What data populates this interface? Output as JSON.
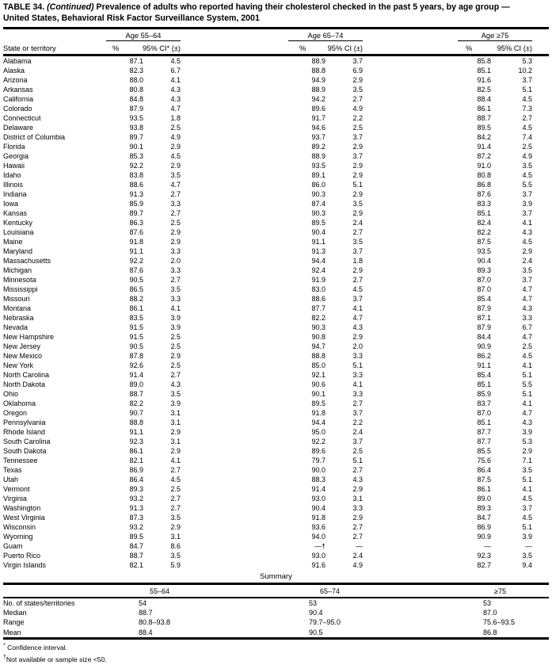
{
  "title": {
    "prefix": "TABLE 34.",
    "continued": "(Continued)",
    "line1_rest": "Prevalence of adults who reported having their cholesterol checked in the past 5 years, by age group —",
    "line2": "United States, Behavioral Risk Factor Surveillance System, 2001"
  },
  "table": {
    "row_header": "State or territory",
    "groups": [
      {
        "label": "Age 55–64",
        "pct_label": "%",
        "ci_label": "95% CI* (±)"
      },
      {
        "label": "Age 65–74",
        "pct_label": "%",
        "ci_label": "95% CI (±)"
      },
      {
        "label": "Age ≥75",
        "pct_label": "%",
        "ci_label": "95% CI (±)"
      }
    ],
    "rows": [
      {
        "name": "Alabama",
        "values": [
          "87.1",
          "4.5",
          "88.9",
          "3.7",
          "85.8",
          "5.3"
        ]
      },
      {
        "name": "Alaska",
        "values": [
          "82.3",
          "6.7",
          "88.8",
          "6.9",
          "85.1",
          "10.2"
        ]
      },
      {
        "name": "Arizona",
        "values": [
          "88.0",
          "4.1",
          "94.9",
          "2.9",
          "91.6",
          "3.7"
        ]
      },
      {
        "name": "Arkansas",
        "values": [
          "80.8",
          "4.3",
          "88.9",
          "3.5",
          "82.5",
          "5.1"
        ]
      },
      {
        "name": "California",
        "values": [
          "84.8",
          "4.3",
          "94.2",
          "2.7",
          "88.4",
          "4.5"
        ]
      },
      {
        "name": "Colorado",
        "values": [
          "87.9",
          "4.7",
          "89.6",
          "4.9",
          "86.1",
          "7.3"
        ]
      },
      {
        "name": "Connecticut",
        "values": [
          "93.5",
          "1.8",
          "91.7",
          "2.2",
          "88.7",
          "2.7"
        ]
      },
      {
        "name": "Delaware",
        "values": [
          "93.8",
          "2.5",
          "94.6",
          "2.5",
          "89.5",
          "4.5"
        ]
      },
      {
        "name": "District of Columbia",
        "values": [
          "89.7",
          "4.9",
          "93.7",
          "3.7",
          "84.2",
          "7.4"
        ]
      },
      {
        "name": "Florida",
        "values": [
          "90.1",
          "2.9",
          "89.2",
          "2.9",
          "91.4",
          "2.5"
        ]
      },
      {
        "name": "Georgia",
        "values": [
          "85.3",
          "4.5",
          "88.9",
          "3.7",
          "87.2",
          "4.9"
        ]
      },
      {
        "name": "Hawaii",
        "values": [
          "92.2",
          "2.9",
          "93.5",
          "2.9",
          "91.0",
          "3.5"
        ]
      },
      {
        "name": "Idaho",
        "values": [
          "83.8",
          "3.5",
          "89.1",
          "2.9",
          "80.8",
          "4.5"
        ]
      },
      {
        "name": "Illinois",
        "values": [
          "88.6",
          "4.7",
          "86.0",
          "5.1",
          "86.8",
          "5.5"
        ]
      },
      {
        "name": "Indiana",
        "values": [
          "91.3",
          "2.7",
          "90.3",
          "2.9",
          "87.6",
          "3.7"
        ]
      },
      {
        "name": "Iowa",
        "values": [
          "85.9",
          "3.3",
          "87.4",
          "3.5",
          "83.3",
          "3.9"
        ]
      },
      {
        "name": "Kansas",
        "values": [
          "89.7",
          "2.7",
          "90.3",
          "2.9",
          "85.1",
          "3.7"
        ]
      },
      {
        "name": "Kentucky",
        "values": [
          "86.3",
          "2.5",
          "89.5",
          "2.4",
          "82.4",
          "4.1"
        ]
      },
      {
        "name": "Louisiana",
        "values": [
          "87.6",
          "2.9",
          "90.4",
          "2.7",
          "82.2",
          "4.3"
        ]
      },
      {
        "name": "Maine",
        "values": [
          "91.8",
          "2.9",
          "91.1",
          "3.5",
          "87.5",
          "4.5"
        ]
      },
      {
        "name": "Maryland",
        "values": [
          "91.1",
          "3.3",
          "91.3",
          "3.7",
          "93.5",
          "2.9"
        ]
      },
      {
        "name": "Massachusetts",
        "values": [
          "92.2",
          "2.0",
          "94.4",
          "1.8",
          "90.4",
          "2.4"
        ]
      },
      {
        "name": "Michigan",
        "values": [
          "87.6",
          "3.3",
          "92.4",
          "2.9",
          "89.3",
          "3.5"
        ]
      },
      {
        "name": "Minnesota",
        "values": [
          "90.5",
          "2.7",
          "91.9",
          "2.7",
          "87.0",
          "3.7"
        ]
      },
      {
        "name": "Mississippi",
        "values": [
          "86.5",
          "3.5",
          "83.0",
          "4.5",
          "87.0",
          "4.7"
        ]
      },
      {
        "name": "Missouri",
        "values": [
          "88.2",
          "3.3",
          "88.6",
          "3.7",
          "85.4",
          "4.7"
        ]
      },
      {
        "name": "Montana",
        "values": [
          "86.1",
          "4.1",
          "87.7",
          "4.1",
          "87.9",
          "4.3"
        ]
      },
      {
        "name": "Nebraska",
        "values": [
          "83.5",
          "3.9",
          "82.2",
          "4.7",
          "87.1",
          "3.3"
        ]
      },
      {
        "name": "Nevada",
        "values": [
          "91.5",
          "3.9",
          "90.3",
          "4.3",
          "87.9",
          "6.7"
        ]
      },
      {
        "name": "New Hampshire",
        "values": [
          "91.5",
          "2.5",
          "90.8",
          "2.9",
          "84.4",
          "4.7"
        ]
      },
      {
        "name": "New Jersey",
        "values": [
          "90.5",
          "2.5",
          "94.7",
          "2.0",
          "90.9",
          "2.5"
        ]
      },
      {
        "name": "New Mexico",
        "values": [
          "87.8",
          "2.9",
          "88.8",
          "3.3",
          "86.2",
          "4.5"
        ]
      },
      {
        "name": "New York",
        "values": [
          "92.6",
          "2.5",
          "85.0",
          "5.1",
          "91.1",
          "4.1"
        ]
      },
      {
        "name": "North Carolina",
        "values": [
          "91.4",
          "2.7",
          "92.1",
          "3.3",
          "85.4",
          "5.1"
        ]
      },
      {
        "name": "North Dakota",
        "values": [
          "89.0",
          "4.3",
          "90.6",
          "4.1",
          "85.1",
          "5.5"
        ]
      },
      {
        "name": "Ohio",
        "values": [
          "88.7",
          "3.5",
          "90.1",
          "3.3",
          "85.9",
          "5.1"
        ]
      },
      {
        "name": "Oklahoma",
        "values": [
          "82.2",
          "3.9",
          "89.5",
          "2.7",
          "83.7",
          "4.1"
        ]
      },
      {
        "name": "Oregon",
        "values": [
          "90.7",
          "3.1",
          "91.8",
          "3.7",
          "87.0",
          "4.7"
        ]
      },
      {
        "name": "Pennsylvania",
        "values": [
          "88.8",
          "3.1",
          "94.4",
          "2.2",
          "85.1",
          "4.3"
        ]
      },
      {
        "name": "Rhode Island",
        "values": [
          "91.1",
          "2.9",
          "95.0",
          "2.4",
          "87.7",
          "3.9"
        ]
      },
      {
        "name": "South Carolina",
        "values": [
          "92.3",
          "3.1",
          "92.2",
          "3.7",
          "87.7",
          "5.3"
        ]
      },
      {
        "name": "South Dakota",
        "values": [
          "86.1",
          "2.9",
          "89.6",
          "2.5",
          "85.5",
          "2.9"
        ]
      },
      {
        "name": "Tennessee",
        "values": [
          "82.1",
          "4.1",
          "79.7",
          "5.1",
          "75.6",
          "7.1"
        ]
      },
      {
        "name": "Texas",
        "values": [
          "86.9",
          "2.7",
          "90.0",
          "2.7",
          "86.4",
          "3.5"
        ]
      },
      {
        "name": "Utah",
        "values": [
          "86.4",
          "4.5",
          "88.3",
          "4.3",
          "87.5",
          "5.1"
        ]
      },
      {
        "name": "Vermont",
        "values": [
          "89.3",
          "2.5",
          "91.4",
          "2.9",
          "86.1",
          "4.1"
        ]
      },
      {
        "name": "Virginia",
        "values": [
          "93.2",
          "2.7",
          "93.0",
          "3.1",
          "89.0",
          "4.5"
        ]
      },
      {
        "name": "Washington",
        "values": [
          "91.3",
          "2.7",
          "90.4",
          "3.3",
          "89.3",
          "3.7"
        ]
      },
      {
        "name": "West Virginia",
        "values": [
          "87.3",
          "3.5",
          "91.8",
          "2.9",
          "84.7",
          "4.5"
        ]
      },
      {
        "name": "Wisconsin",
        "values": [
          "93.2",
          "2.9",
          "93.6",
          "2.7",
          "86.9",
          "5.1"
        ]
      },
      {
        "name": "Wyoming",
        "values": [
          "89.5",
          "3.1",
          "94.0",
          "2.7",
          "90.9",
          "3.9"
        ]
      },
      {
        "name": "Guam",
        "values": [
          "84.7",
          "8.6",
          "—†",
          "—",
          "—",
          "—"
        ]
      },
      {
        "name": "Puerto Rico",
        "values": [
          "88.7",
          "3.5",
          "93.0",
          "2.4",
          "92.3",
          "3.5"
        ]
      },
      {
        "name": "Virgin Islands",
        "values": [
          "82.1",
          "5.9",
          "91.6",
          "4.9",
          "82.7",
          "9.4"
        ]
      }
    ]
  },
  "summary": {
    "title": "Summary",
    "columns": [
      "55–64",
      "65–74",
      "≥75"
    ],
    "rows": [
      {
        "label": "No. of states/territories",
        "values": [
          "54",
          "53",
          "53"
        ]
      },
      {
        "label": "Median",
        "values": [
          "88.7",
          "90.4",
          "87.0"
        ]
      },
      {
        "label": "Range",
        "values": [
          "80.8–93.8",
          "79.7–95.0",
          "75.6–93.5"
        ]
      },
      {
        "label": "Mean",
        "values": [
          "88.4",
          "90.5",
          "86.8"
        ]
      }
    ]
  },
  "footnotes": [
    {
      "marker": "*",
      "text": "Confidence interval."
    },
    {
      "marker": "†",
      "text": "Not available or sample size <50."
    }
  ]
}
